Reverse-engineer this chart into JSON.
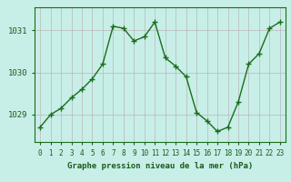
{
  "x": [
    0,
    1,
    2,
    3,
    4,
    5,
    6,
    7,
    8,
    9,
    10,
    11,
    12,
    13,
    14,
    15,
    16,
    17,
    18,
    19,
    20,
    21,
    22,
    23
  ],
  "y": [
    1028.7,
    1029.0,
    1029.15,
    1029.4,
    1029.6,
    1029.85,
    1030.2,
    1031.1,
    1031.05,
    1030.75,
    1030.85,
    1031.2,
    1030.35,
    1030.15,
    1029.9,
    1029.05,
    1028.85,
    1028.6,
    1028.7,
    1029.3,
    1030.2,
    1030.45,
    1031.05,
    1031.2
  ],
  "line_color": "#1a6e1a",
  "marker": "+",
  "marker_size": 4,
  "marker_linewidth": 1.0,
  "background_color": "#c8eee8",
  "grid_color": "#b8b8b8",
  "xlabel": "Graphe pression niveau de la mer (hPa)",
  "xlabel_color": "#1a5c1a",
  "tick_color": "#1a5c1a",
  "yticks": [
    1029,
    1030,
    1031
  ],
  "ylim": [
    1028.35,
    1031.55
  ],
  "xlim": [
    -0.5,
    23.5
  ],
  "xticks": [
    0,
    1,
    2,
    3,
    4,
    5,
    6,
    7,
    8,
    9,
    10,
    11,
    12,
    13,
    14,
    15,
    16,
    17,
    18,
    19,
    20,
    21,
    22,
    23
  ],
  "xtick_labels": [
    "0",
    "1",
    "2",
    "3",
    "4",
    "5",
    "6",
    "7",
    "8",
    "9",
    "10",
    "11",
    "12",
    "13",
    "14",
    "15",
    "16",
    "17",
    "18",
    "19",
    "20",
    "21",
    "22",
    "23"
  ],
  "line_width": 1.0,
  "tick_fontsize": 5.5,
  "xlabel_fontsize": 6.5
}
